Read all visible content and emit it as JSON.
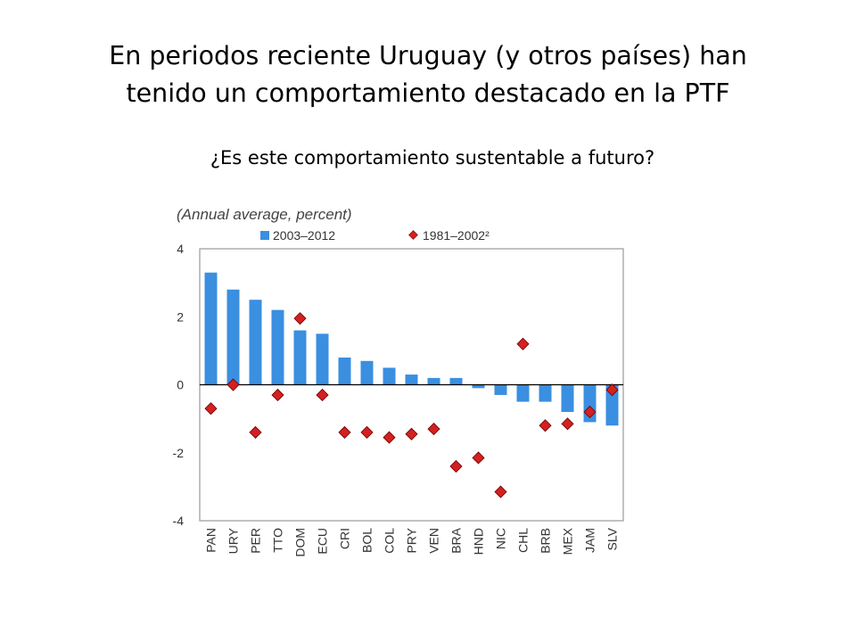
{
  "slide": {
    "title_line1": "En periodos reciente Uruguay (y otros países) han",
    "title_line2": "tenido un comportamiento destacado en la PTF",
    "subtitle": "¿Es este comportamiento sustentable a futuro?"
  },
  "chart_data": {
    "type": "bar",
    "subtitle": "(Annual average, percent)",
    "categories": [
      "PAN",
      "URY",
      "PER",
      "TTO",
      "DOM",
      "ECU",
      "CRI",
      "BOL",
      "COL",
      "PRY",
      "VEN",
      "BRA",
      "HND",
      "NIC",
      "CHL",
      "BRB",
      "MEX",
      "JAM",
      "SLV"
    ],
    "series": [
      {
        "name": "2003–2012",
        "kind": "bar",
        "color": "#3a8fe0",
        "values": [
          3.3,
          2.8,
          2.5,
          2.2,
          1.6,
          1.5,
          0.8,
          0.7,
          0.5,
          0.3,
          0.2,
          0.2,
          -0.1,
          -0.3,
          -0.5,
          -0.5,
          -0.8,
          -1.1,
          -1.2
        ]
      },
      {
        "name": "1981–2002²",
        "kind": "marker",
        "color": "#d42020",
        "values": [
          -0.7,
          0.0,
          -1.4,
          -0.3,
          1.95,
          -0.3,
          -1.4,
          -1.4,
          -1.55,
          -1.45,
          -1.3,
          -2.4,
          -2.15,
          -3.15,
          1.2,
          -1.2,
          -1.15,
          -0.8,
          -0.15
        ]
      }
    ],
    "ylim": [
      -4,
      4
    ],
    "yticks": [
      "4",
      "2",
      "0",
      "-2",
      "-4"
    ],
    "legend_position": "top",
    "grid": false
  }
}
